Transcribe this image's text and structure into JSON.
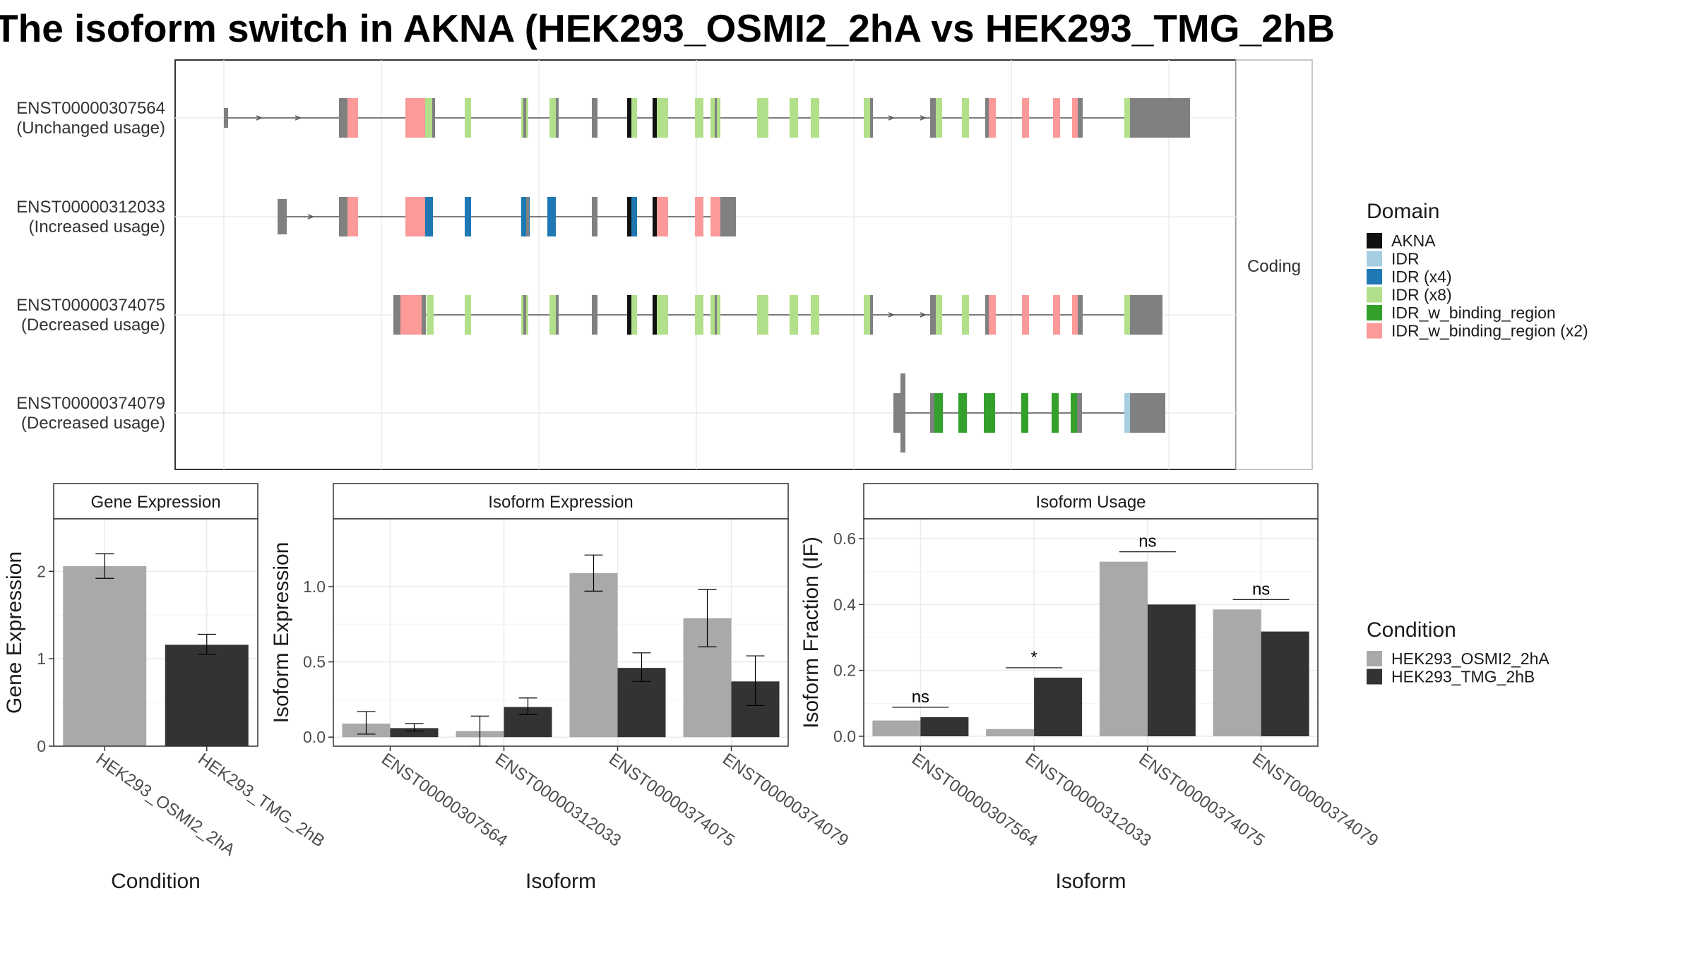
{
  "title": "The isoform switch in AKNA (HEK293_OSMI2_2hA vs HEK293_TMG_2hB",
  "colors": {
    "AKNA": "#111111",
    "IDR": "#a6cee3",
    "IDR (x4)": "#1f78b4",
    "IDR (x8)": "#b2df8a",
    "IDR_w_binding_region": "#33a02c",
    "IDR_w_binding_region (x2)": "#fb9a99",
    "utr": "#808080",
    "cond_a": "#a9a9a9",
    "cond_b": "#333333"
  },
  "chart_data": [
    {
      "type": "gene-structure",
      "facet_label": "Coding",
      "transcripts": [
        {
          "id": "ENST00000307564",
          "usage": "(Unchanged usage)"
        },
        {
          "id": "ENST00000312033",
          "usage": "(Increased usage)"
        },
        {
          "id": "ENST00000374075",
          "usage": "(Decreased usage)"
        },
        {
          "id": "ENST00000374079",
          "usage": "(Decreased usage)"
        }
      ],
      "legend": {
        "title": "Domain",
        "entries": [
          "AKNA",
          "IDR",
          "IDR (x4)",
          "IDR (x8)",
          "IDR_w_binding_region",
          "IDR_w_binding_region (x2)"
        ]
      }
    },
    {
      "type": "bar",
      "title": "Gene Expression",
      "xlabel": "Condition",
      "ylabel": "Gene Expression",
      "categories": [
        "HEK293_OSMI2_2hA",
        "HEK293_TMG_2hB"
      ],
      "values": [
        2.06,
        1.16
      ],
      "errors": [
        [
          1.92,
          2.2
        ],
        [
          1.05,
          1.28
        ]
      ],
      "yticks": [
        "0",
        "1",
        "2"
      ],
      "ylim": [
        0,
        2.6
      ]
    },
    {
      "type": "bar",
      "title": "Isoform Expression",
      "xlabel": "Isoform",
      "ylabel": "Isoform Expression",
      "categories": [
        "ENST00000307564",
        "ENST00000312033",
        "ENST00000374075",
        "ENST00000374079"
      ],
      "series": [
        {
          "values": [
            0.09,
            0.04,
            1.09,
            0.79
          ],
          "errors": [
            [
              0.02,
              0.17
            ],
            [
              -0.06,
              0.14
            ],
            [
              0.97,
              1.21
            ],
            [
              0.6,
              0.98
            ]
          ]
        },
        {
          "values": [
            0.06,
            0.2,
            0.46,
            0.37
          ],
          "errors": [
            [
              0.04,
              0.09
            ],
            [
              0.15,
              0.26
            ],
            [
              0.37,
              0.56
            ],
            [
              0.21,
              0.54
            ]
          ]
        }
      ],
      "yticks": [
        "0.0",
        "0.5",
        "1.0"
      ],
      "ylim": [
        -0.06,
        1.45
      ]
    },
    {
      "type": "bar",
      "title": "Isoform Usage",
      "xlabel": "Isoform",
      "ylabel": "Isoform Fraction (IF)",
      "categories": [
        "ENST00000307564",
        "ENST00000312033",
        "ENST00000374075",
        "ENST00000374079"
      ],
      "series": [
        {
          "values": [
            0.048,
            0.022,
            0.53,
            0.385
          ]
        },
        {
          "values": [
            0.058,
            0.178,
            0.4,
            0.318
          ]
        }
      ],
      "significance": [
        "ns",
        "*",
        "ns",
        "ns"
      ],
      "sig_y": [
        0.088,
        0.208,
        0.56,
        0.415
      ],
      "yticks": [
        "0.0",
        "0.2",
        "0.4",
        "0.6"
      ],
      "ylim": [
        -0.03,
        0.66
      ]
    }
  ],
  "condition_legend": {
    "title": "Condition",
    "entries": [
      "HEK293_OSMI2_2hA",
      "HEK293_TMG_2hB"
    ]
  }
}
